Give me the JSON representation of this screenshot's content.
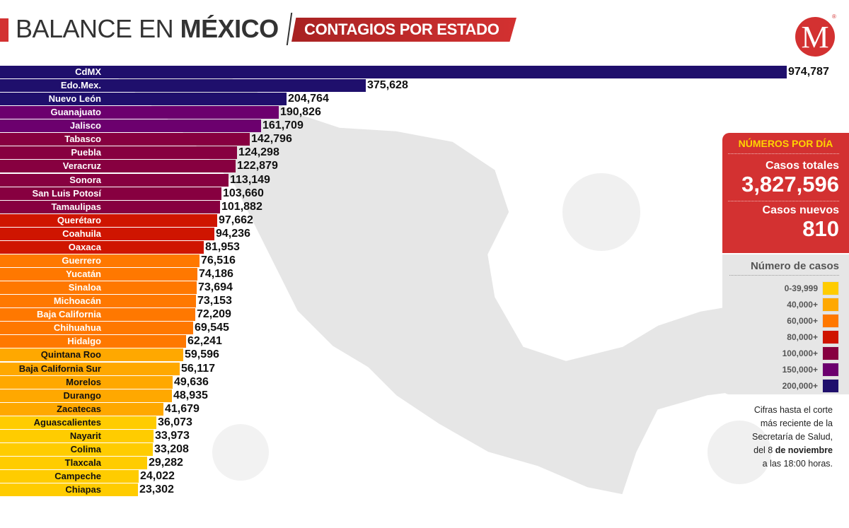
{
  "header": {
    "title_regular": "BALANCE EN ",
    "title_bold": "MÉXICO",
    "subtitle": "CONTAGIOS POR ESTADO"
  },
  "logo": {
    "letter": "M",
    "mark": "®",
    "color": "#d33131"
  },
  "chart_data": {
    "type": "bar",
    "orientation": "horizontal",
    "title": "CONTAGIOS POR ESTADO",
    "categories": [
      "CdMX",
      "Edo.Mex.",
      "Nuevo León",
      "Guanajuato",
      "Jalisco",
      "Tabasco",
      "Puebla",
      "Veracruz",
      "Sonora",
      "San Luis Potosí",
      "Tamaulipas",
      "Querétaro",
      "Coahuila",
      "Oaxaca",
      "Guerrero",
      "Yucatán",
      "Sinaloa",
      "Michoacán",
      "Baja California",
      "Chihuahua",
      "Hidalgo",
      "Quintana Roo",
      "Baja California Sur",
      "Morelos",
      "Durango",
      "Zacatecas",
      "Aguascalientes",
      "Nayarit",
      "Colima",
      "Tlaxcala",
      "Campeche",
      "Chiapas"
    ],
    "values": [
      974787,
      375628,
      204764,
      190826,
      161709,
      142796,
      124298,
      122879,
      113149,
      103660,
      101882,
      97662,
      94236,
      81953,
      76516,
      74186,
      73694,
      73153,
      72209,
      69545,
      62241,
      59596,
      56117,
      49636,
      48935,
      41679,
      36073,
      33973,
      33208,
      29282,
      24022,
      23302
    ],
    "value_labels": [
      "974,787",
      "375,628",
      "204,764",
      "190,826",
      "161,709",
      "142,796",
      "124,298",
      "122,879",
      "113,149",
      "103,660",
      "101,882",
      "97,662",
      "94,236",
      "81,953",
      "76,516",
      "74,186",
      "73,694",
      "73,153",
      "72,209",
      "69,545",
      "62,241",
      "59,596",
      "56,117",
      "49,636",
      "48,935",
      "41,679",
      "36,073",
      "33,973",
      "33,208",
      "29,282",
      "24,022",
      "23,302"
    ]
  },
  "daily": {
    "heading": "NÚMEROS POR DÍA",
    "total_label": "Casos totales",
    "total_value": "3,827,596",
    "new_label": "Casos nuevos",
    "new_value": "810"
  },
  "legend": {
    "heading": "Número de casos",
    "items": [
      {
        "label": "0-39,999",
        "min": 0,
        "color": "#ffcc00",
        "text": "#111"
      },
      {
        "label": "40,000+",
        "min": 40000,
        "color": "#ffa800",
        "text": "#111"
      },
      {
        "label": "60,000+",
        "min": 60000,
        "color": "#ff7800",
        "text": "#fff"
      },
      {
        "label": "80,000+",
        "min": 80000,
        "color": "#cf1500",
        "text": "#fff"
      },
      {
        "label": "100,000+",
        "min": 100000,
        "color": "#870040",
        "text": "#fff"
      },
      {
        "label": "150,000+",
        "min": 150000,
        "color": "#6c006e",
        "text": "#fff"
      },
      {
        "label": "200,000+",
        "min": 200000,
        "color": "#1f0f6c",
        "text": "#fff"
      }
    ]
  },
  "note": {
    "line1": "Cifras hasta el corte",
    "line2": "más reciente de la",
    "line3": "Secretaría de Salud,",
    "line4_pre": "del 8 ",
    "line4_bold": "de noviembre",
    "line5": "a las 18:00 horas."
  }
}
